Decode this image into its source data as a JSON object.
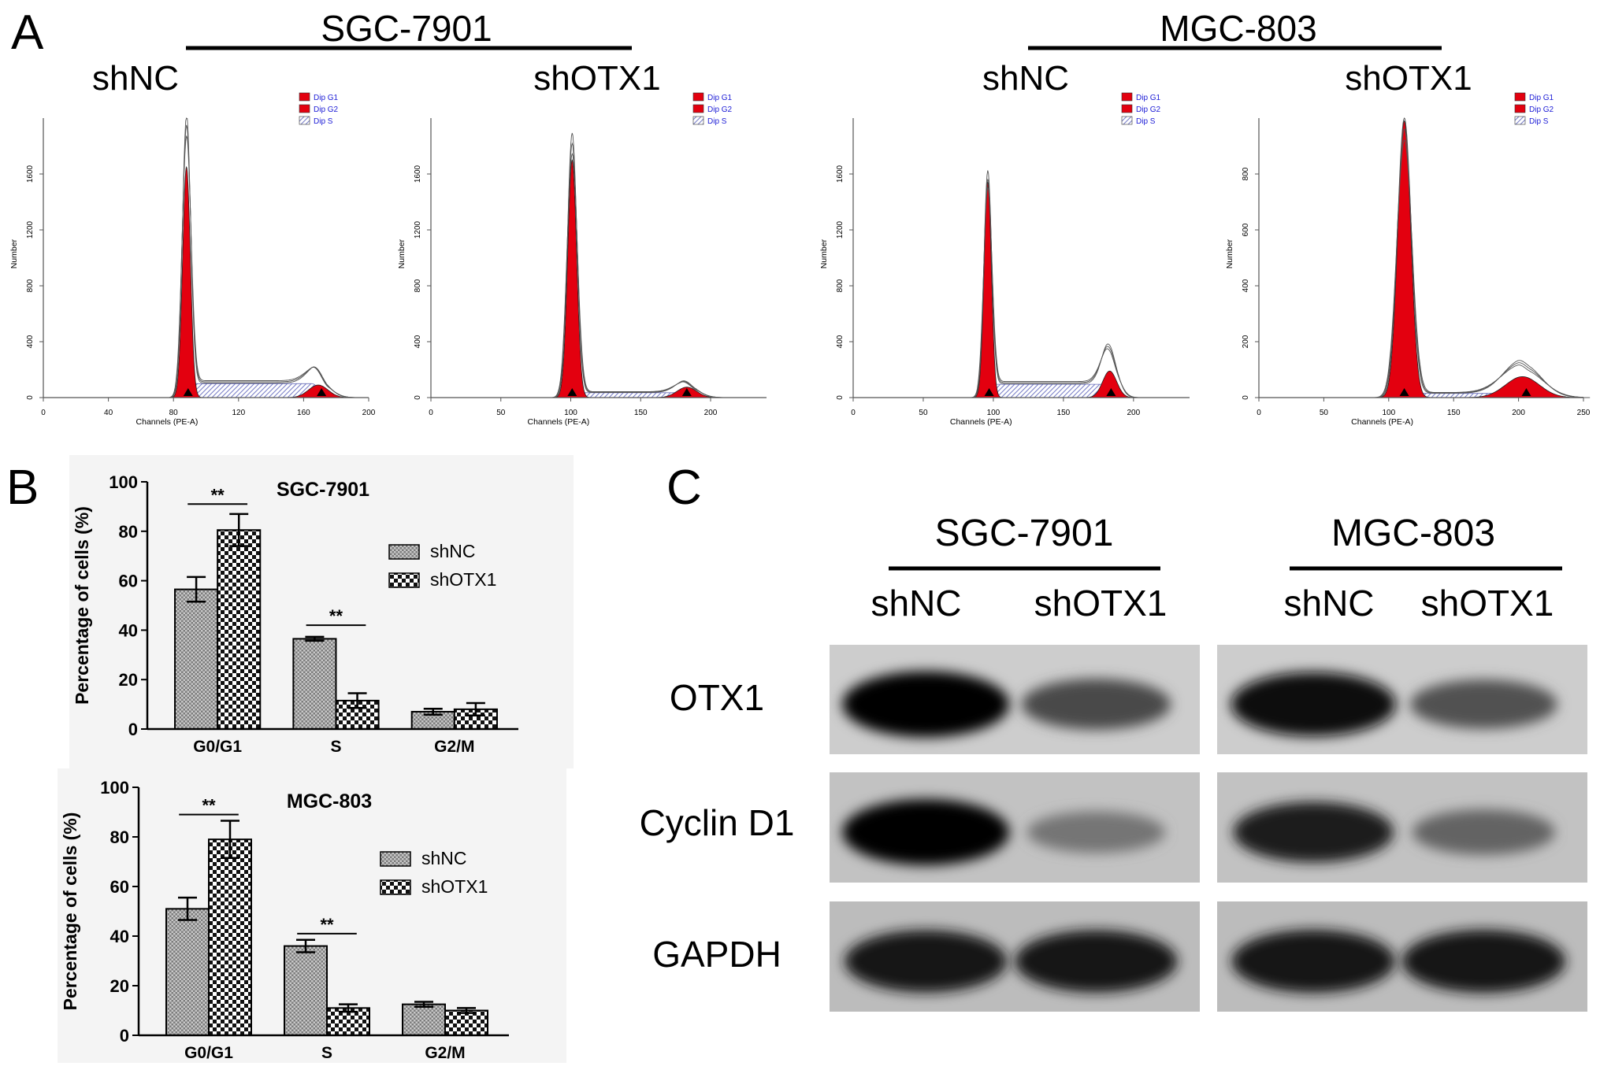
{
  "panels": {
    "A": "A",
    "B": "B",
    "C": "C"
  },
  "panel_a": {
    "groups": [
      {
        "cell_line": "SGC-7901"
      },
      {
        "cell_line": "MGC-803"
      }
    ],
    "legend": [
      "Dip G1",
      "Dip G2",
      "Dip S"
    ],
    "x_axis_label": "Channels (PE-A)",
    "y_axis_label": "Number",
    "colors": {
      "g1": "#e3000f",
      "g2": "#e3000f",
      "s_fill": "#9aa0d8",
      "outline": "#555555",
      "legend_text": "#1c1cd6"
    }
  },
  "chart_data": [
    {
      "type": "area",
      "panel": "A",
      "subtitle": "shNC",
      "group": "SGC-7901",
      "xlabel": "Channels (PE-A)",
      "ylabel": "Number",
      "xlim": [
        0,
        200
      ],
      "ylim": [
        0,
        2000
      ],
      "xticks": [
        0,
        40,
        80,
        120,
        160,
        200
      ],
      "yticks": [
        0,
        400,
        800,
        1200,
        1600
      ],
      "g1": {
        "mean": 88,
        "peak": 1650,
        "sd": 2.4
      },
      "g2": {
        "mean": 169,
        "peak": 90,
        "sd": 6
      },
      "s_level": 100,
      "raw_peaks": [
        1990,
        130
      ],
      "markers": [
        89,
        171
      ]
    },
    {
      "type": "area",
      "panel": "A",
      "subtitle": "shOTX1",
      "group": "SGC-7901",
      "xlabel": "Channels (PE-A)",
      "ylabel": "Number",
      "xlim": [
        0,
        240
      ],
      "ylim": [
        0,
        2000
      ],
      "xticks": [
        0,
        50,
        100,
        150,
        200
      ],
      "yticks": [
        0,
        400,
        800,
        1200,
        1600
      ],
      "g1": {
        "mean": 101,
        "peak": 1700,
        "sd": 3.2
      },
      "g2": {
        "mean": 183,
        "peak": 75,
        "sd": 7
      },
      "s_level": 35,
      "raw_peaks": [
        1880,
        90
      ],
      "markers": [
        101,
        183
      ]
    },
    {
      "type": "area",
      "panel": "A",
      "subtitle": "shNC",
      "group": "MGC-803",
      "xlabel": "Channels (PE-A)",
      "ylabel": "Number",
      "xlim": [
        0,
        240
      ],
      "ylim": [
        0,
        2000
      ],
      "xticks": [
        0,
        50,
        100,
        150,
        200
      ],
      "yticks": [
        0,
        400,
        800,
        1200,
        1600
      ],
      "g1": {
        "mean": 96,
        "peak": 1540,
        "sd": 2.6
      },
      "g2": {
        "mean": 183,
        "peak": 190,
        "sd": 5
      },
      "s_level": 95,
      "raw_peaks": [
        1590,
        310
      ],
      "markers": [
        97,
        184
      ]
    },
    {
      "type": "area",
      "panel": "A",
      "subtitle": "shOTX1",
      "group": "MGC-803",
      "xlabel": "Channels (PE-A)",
      "ylabel": "Number",
      "xlim": [
        0,
        250
      ],
      "ylim": [
        0,
        1000
      ],
      "xticks": [
        0,
        50,
        100,
        150,
        200,
        250
      ],
      "yticks": [
        0,
        200,
        400,
        600,
        800
      ],
      "g1": {
        "mean": 112,
        "peak": 990,
        "sd": 5
      },
      "g2": {
        "mean": 203,
        "peak": 75,
        "sd": 13
      },
      "s_level": 15,
      "raw_peaks": [
        995,
        120
      ],
      "markers": [
        112,
        206
      ]
    },
    {
      "type": "bar",
      "panel": "B",
      "title": "SGC-7901",
      "ylabel": "Percentage of cells (%)",
      "categories": [
        "G0/G1",
        "S",
        "G2/M"
      ],
      "ylim": [
        0,
        100
      ],
      "yticks": [
        0,
        20,
        40,
        60,
        80,
        100
      ],
      "legend": "top-right",
      "series": [
        {
          "name": "shNC",
          "values": [
            56.5,
            36.5,
            7.0
          ],
          "errors": [
            5.0,
            0.8,
            1.2
          ]
        },
        {
          "name": "shOTX1",
          "values": [
            80.5,
            11.5,
            8.0
          ],
          "errors": [
            6.5,
            3.0,
            2.5
          ]
        }
      ],
      "significance": [
        {
          "category": "G0/G1",
          "label": "**",
          "y": 91
        },
        {
          "category": "S",
          "label": "**",
          "y": 42
        }
      ]
    },
    {
      "type": "bar",
      "panel": "B",
      "title": "MGC-803",
      "ylabel": "Percentage of cells (%)",
      "categories": [
        "G0/G1",
        "S",
        "G2/M"
      ],
      "ylim": [
        0,
        100
      ],
      "yticks": [
        0,
        20,
        40,
        60,
        80,
        100
      ],
      "legend": "right",
      "series": [
        {
          "name": "shNC",
          "values": [
            51.0,
            36.0,
            12.5
          ],
          "errors": [
            4.5,
            2.5,
            1.0
          ]
        },
        {
          "name": "shOTX1",
          "values": [
            79.0,
            11.0,
            10.0
          ],
          "errors": [
            7.5,
            1.5,
            1.0
          ]
        }
      ],
      "significance": [
        {
          "category": "G0/G1",
          "label": "**",
          "y": 89
        },
        {
          "category": "S",
          "label": "**",
          "y": 41
        }
      ]
    }
  ],
  "panel_c": {
    "groups": [
      {
        "cell_line": "SGC-7901",
        "lanes": [
          "shNC",
          "shOTX1"
        ]
      },
      {
        "cell_line": "MGC-803",
        "lanes": [
          "shNC",
          "shOTX1"
        ]
      }
    ],
    "proteins": [
      "OTX1",
      "Cyclin D1",
      "GAPDH"
    ],
    "band_intensity": [
      [
        [
          1.0,
          0.6
        ],
        [
          0.95,
          0.55
        ]
      ],
      [
        [
          1.0,
          0.35
        ],
        [
          0.85,
          0.45
        ]
      ],
      [
        [
          0.9,
          0.9
        ],
        [
          0.92,
          0.92
        ]
      ]
    ]
  }
}
